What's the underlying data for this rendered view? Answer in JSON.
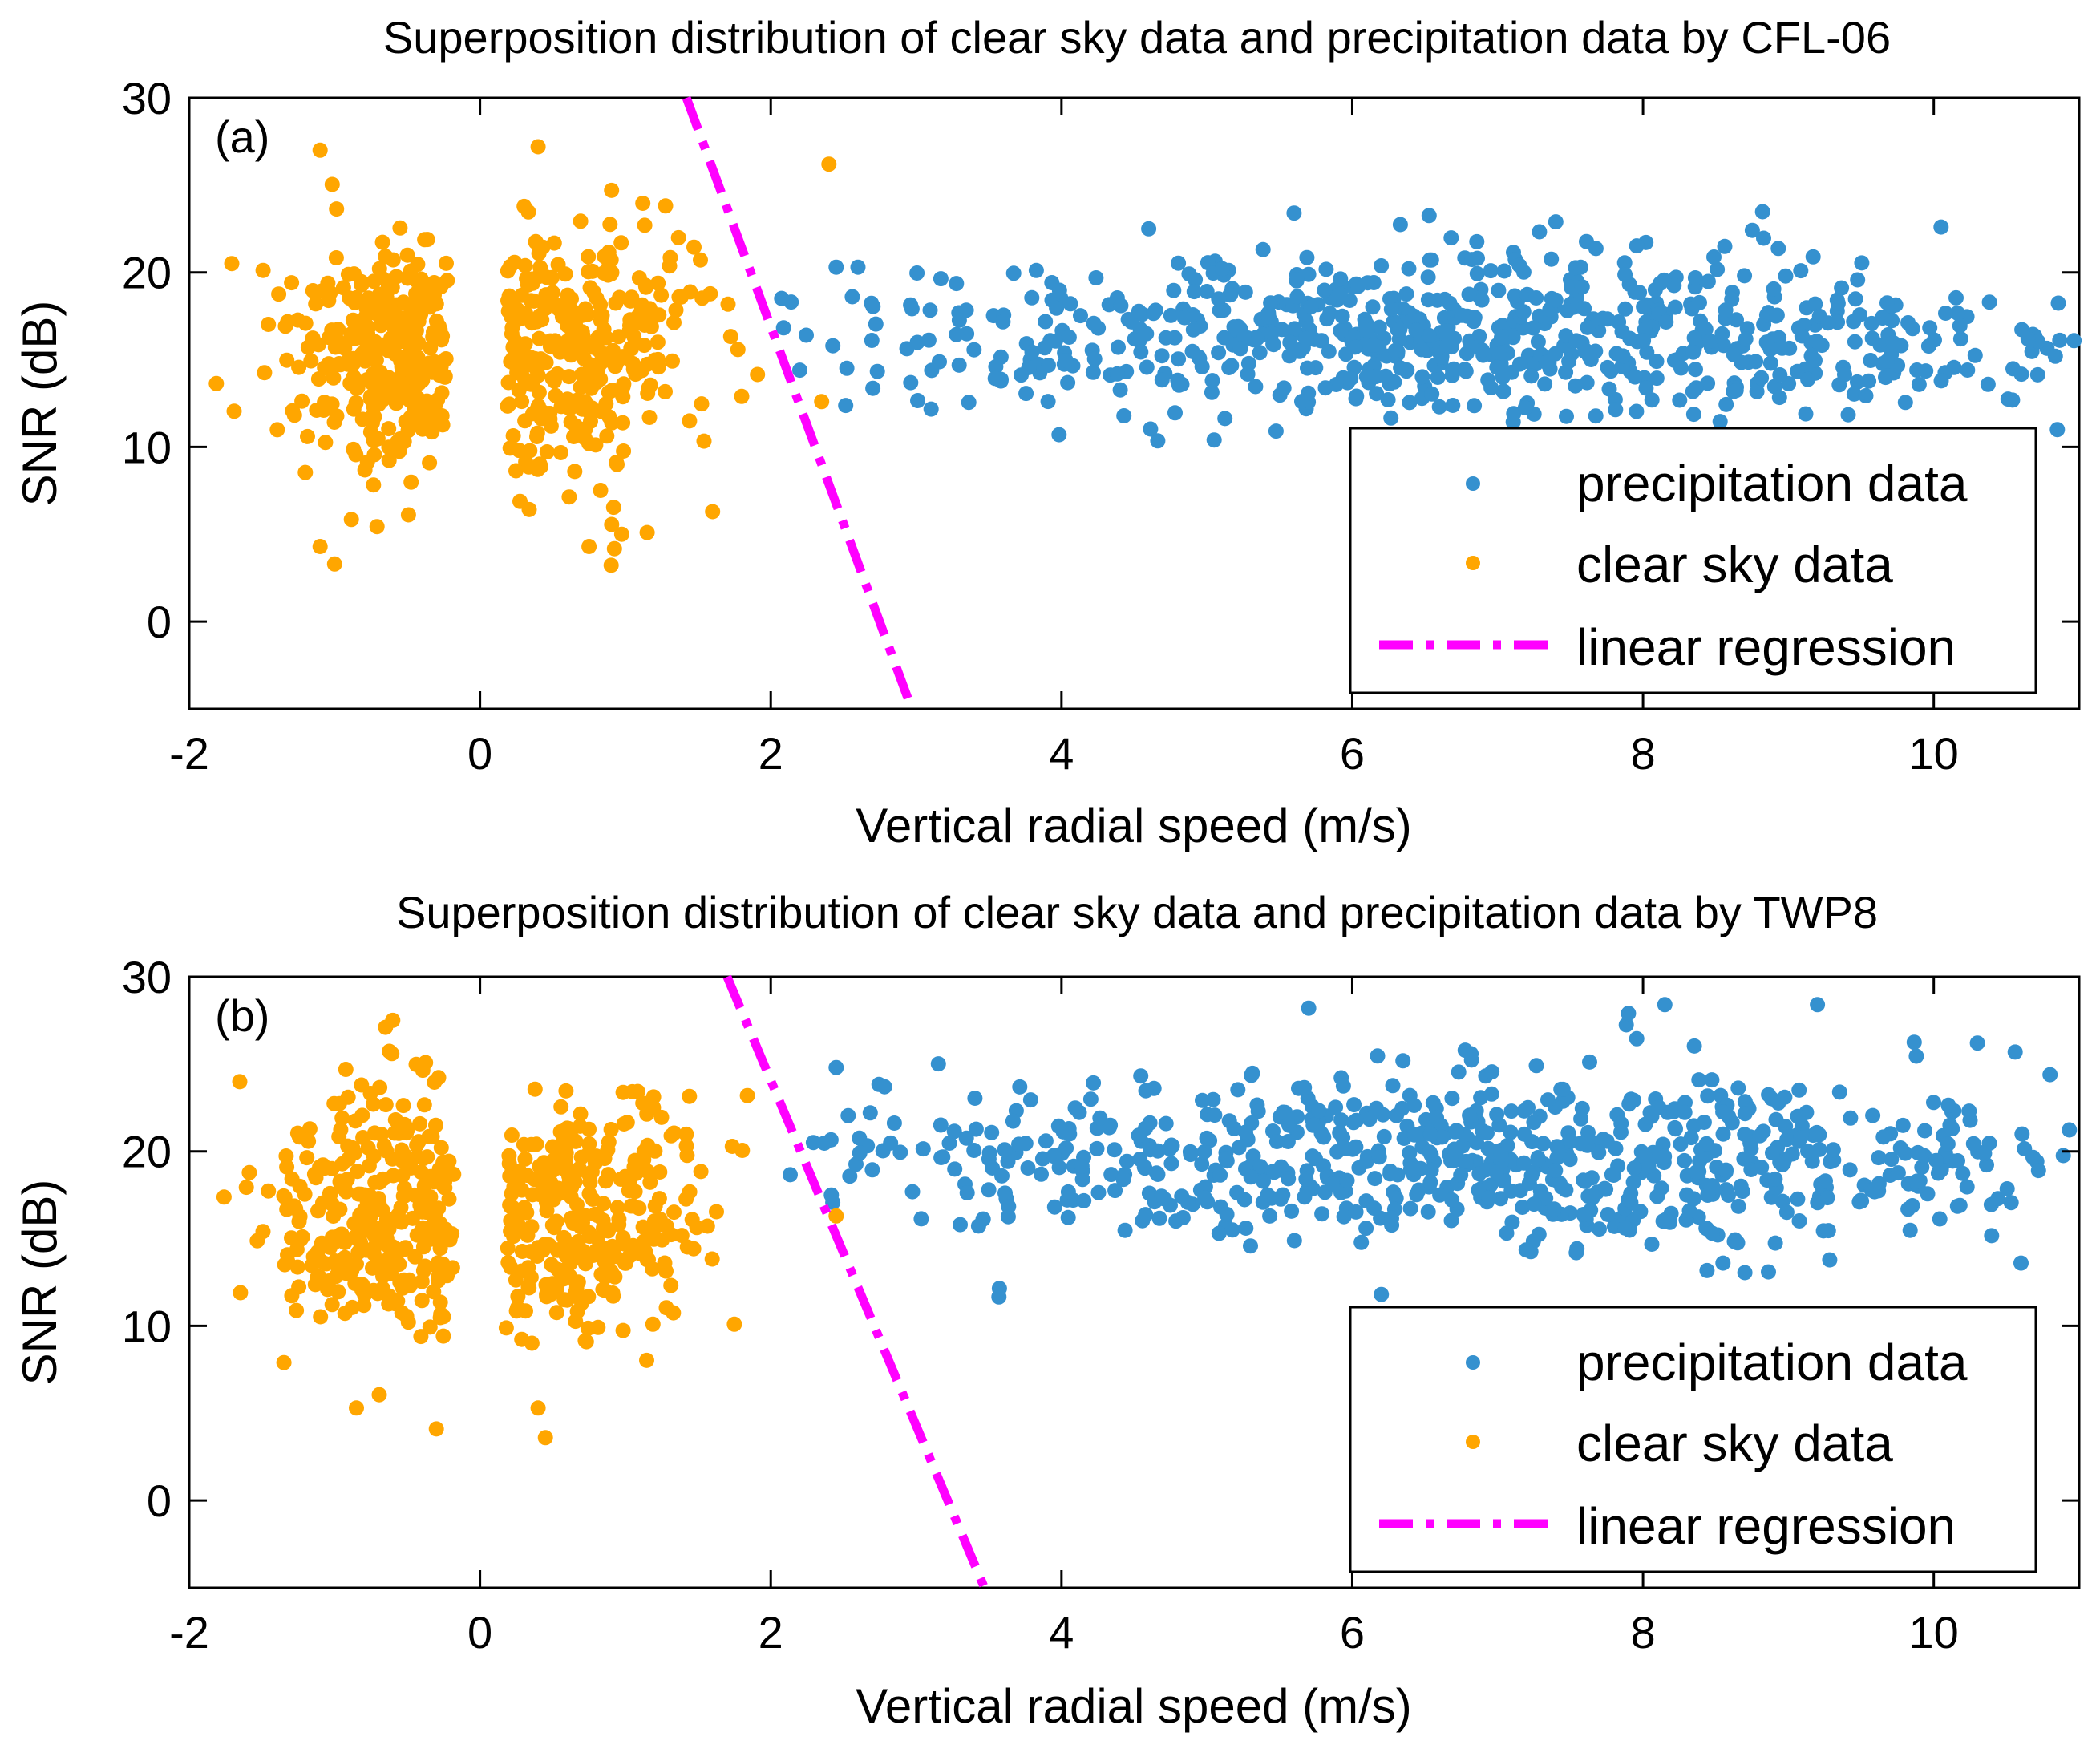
{
  "chart_data": [
    {
      "type": "scatter",
      "panel_label": "(a)",
      "title": "Superposition distribution of clear sky data and precipitation data by CFL-06",
      "xlabel": "Vertical radial speed (m/s)",
      "ylabel": "SNR (dB)",
      "xlim": [
        -2,
        11
      ],
      "ylim": [
        -5,
        30
      ],
      "xticks": [
        -2,
        0,
        2,
        4,
        6,
        8,
        10
      ],
      "yticks": [
        0,
        10,
        20,
        30
      ],
      "legend": [
        "precipitation data",
        "clear sky data",
        "linear regression"
      ],
      "legend_position": "bottom-right",
      "colors": {
        "precipitation": "#3591cf",
        "clear_sky": "#ffa600",
        "regression": "#ff00ff"
      },
      "regression_line": {
        "x": [
          1.42,
          2.97
        ],
        "y": [
          30,
          -5
        ]
      },
      "clusters": {
        "clear_sky": [
          {
            "cx": -0.6,
            "sx": 0.38,
            "cy": 15.5,
            "sy": 3.6,
            "n": 300,
            "xmin": -1.95,
            "xmax": -0.22
          },
          {
            "cx": 0.65,
            "sx": 0.45,
            "cy": 15.8,
            "sy": 3.6,
            "n": 300,
            "xmin": 0.18,
            "xmax": 1.95
          }
        ],
        "precipitation": [
          {
            "cx": 6.8,
            "sx": 2.35,
            "cy": 16.2,
            "sy": 2.4,
            "n": 720,
            "xmin": 2.05,
            "xmax": 11.0
          }
        ]
      },
      "extra_points": {
        "clear_sky": [
          [
            -1.1,
            27.0
          ],
          [
            0.4,
            27.2
          ],
          [
            2.4,
            26.2
          ],
          [
            -1.0,
            3.3
          ],
          [
            -1.1,
            4.3
          ],
          [
            0.75,
            4.3
          ],
          [
            1.15,
            5.1
          ],
          [
            2.35,
            12.6
          ],
          [
            1.8,
            12.9
          ],
          [
            1.6,
            6.3
          ]
        ],
        "precipitation": [
          [
            4.6,
            22.5
          ],
          [
            5.6,
            23.4
          ],
          [
            7.4,
            22.9
          ],
          [
            10.05,
            22.6
          ],
          [
            2.45,
            20.3
          ],
          [
            2.6,
            20.3
          ],
          [
            5.05,
            10.4
          ],
          [
            10.85,
            11.0
          ],
          [
            2.2,
            14.4
          ]
        ]
      }
    },
    {
      "type": "scatter",
      "panel_label": "(b)",
      "title": "Superposition distribution of clear sky data and precipitation data by TWP8",
      "xlabel": "Vertical radial speed (m/s)",
      "ylabel": "SNR (dB)",
      "xlim": [
        -2,
        11
      ],
      "ylim": [
        -5,
        30
      ],
      "xticks": [
        -2,
        0,
        2,
        4,
        6,
        8,
        10
      ],
      "yticks": [
        0,
        10,
        20,
        30
      ],
      "legend": [
        "precipitation data",
        "clear sky data",
        "linear regression"
      ],
      "legend_position": "bottom-right",
      "colors": {
        "precipitation": "#3591cf",
        "clear_sky": "#ffa600",
        "regression": "#ff00ff"
      },
      "regression_line": {
        "x": [
          1.7,
          3.47
        ],
        "y": [
          30,
          -5
        ]
      },
      "clusters": {
        "clear_sky": [
          {
            "cx": -0.6,
            "sx": 0.42,
            "cy": 16.3,
            "sy": 3.7,
            "n": 300,
            "xmin": -1.85,
            "xmax": -0.18
          },
          {
            "cx": 0.6,
            "sx": 0.45,
            "cy": 16.5,
            "sy": 3.7,
            "n": 300,
            "xmin": 0.18,
            "xmax": 1.85
          }
        ],
        "precipitation": [
          {
            "cx": 6.9,
            "sx": 2.3,
            "cy": 19.6,
            "sy": 2.3,
            "n": 720,
            "xmin": 2.05,
            "xmax": 11.0
          }
        ]
      },
      "extra_points": {
        "clear_sky": [
          [
            -0.6,
            27.5
          ],
          [
            -0.65,
            27.1
          ],
          [
            -0.85,
            5.3
          ],
          [
            -0.3,
            4.1
          ],
          [
            0.45,
            3.6
          ],
          [
            0.4,
            5.3
          ],
          [
            1.75,
            10.1
          ],
          [
            2.45,
            16.3
          ]
        ],
        "precipitation": [
          [
            5.7,
            28.2
          ],
          [
            7.9,
            27.9
          ],
          [
            8.15,
            28.4
          ],
          [
            9.2,
            28.4
          ],
          [
            6.2,
            11.8
          ],
          [
            10.6,
            13.6
          ],
          [
            8.55,
            13.6
          ],
          [
            2.45,
            24.8
          ],
          [
            10.3,
            26.2
          ]
        ]
      }
    }
  ]
}
